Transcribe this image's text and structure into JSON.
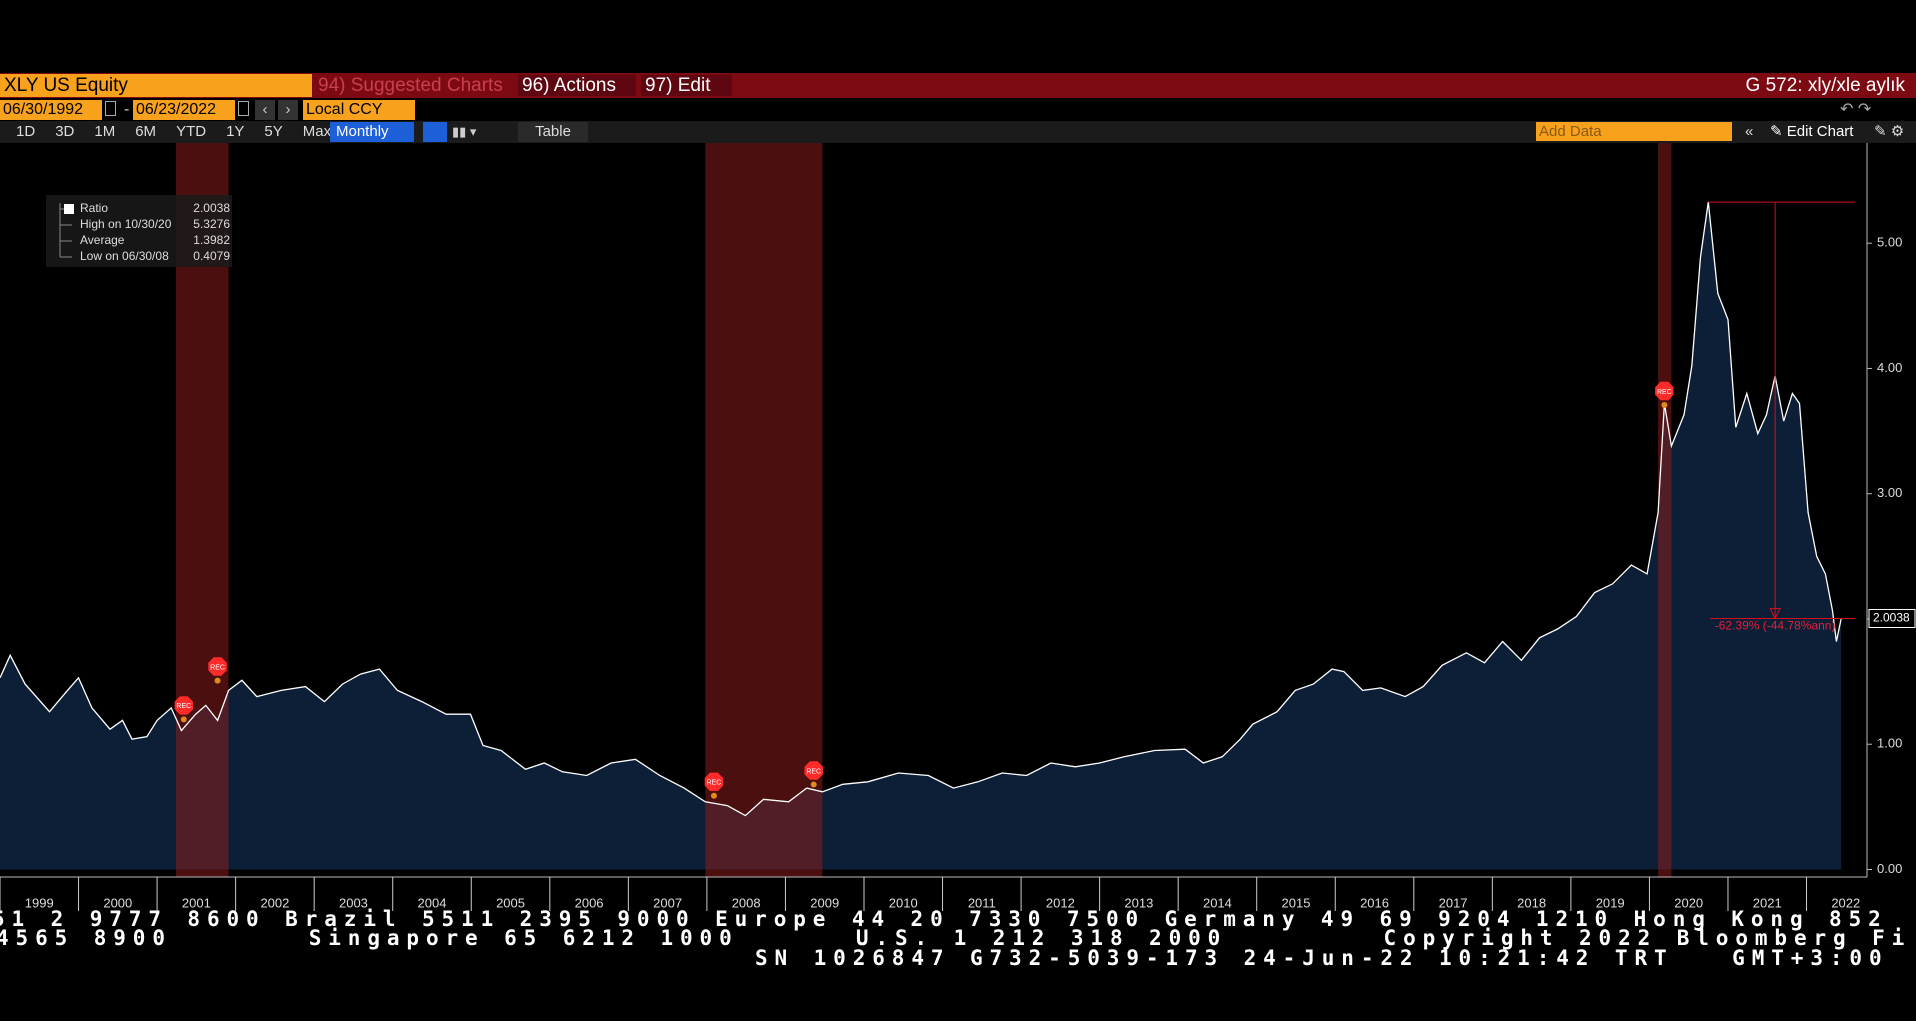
{
  "toolbar": {
    "security": "XLY US Equity",
    "suggested": "94) Suggested Charts",
    "actions": "96) Actions",
    "edit": "97) Edit",
    "chart_title": "G 572: xly/xle aylık",
    "start_date": "06/30/1992",
    "date_sep": "-",
    "end_date": "06/23/2022",
    "currency": "Local CCY",
    "periods": [
      "1D",
      "3D",
      "1M",
      "6M",
      "YTD",
      "1Y",
      "5Y",
      "Max"
    ],
    "frequency": "Monthly",
    "table": "Table",
    "add_data": "Add Data",
    "edit_chart": "Edit Chart"
  },
  "chart_data": {
    "type": "area",
    "color": "#ffffff",
    "area_color": "#0d1f37",
    "x": [
      1999.0,
      1999.13,
      1999.32,
      1999.63,
      1999.86,
      2000.0,
      2000.17,
      2000.4,
      2000.56,
      2000.68,
      2000.87,
      2001.0,
      2001.18,
      2001.31,
      2001.49,
      2001.62,
      2001.77,
      2001.91,
      2002.08,
      2002.27,
      2002.58,
      2002.89,
      2003.13,
      2003.36,
      2003.59,
      2003.83,
      2004.06,
      2004.37,
      2004.68,
      2004.99,
      2005.15,
      2005.38,
      2005.69,
      2005.93,
      2006.16,
      2006.47,
      2006.78,
      2007.09,
      2007.4,
      2007.71,
      2007.98,
      2008.26,
      2008.49,
      2008.72,
      2009.04,
      2009.27,
      2009.47,
      2009.73,
      2010.05,
      2010.44,
      2010.82,
      2011.14,
      2011.45,
      2011.76,
      2012.07,
      2012.38,
      2012.69,
      2013.0,
      2013.31,
      2013.7,
      2014.09,
      2014.32,
      2014.56,
      2014.79,
      2014.95,
      2015.26,
      2015.49,
      2015.72,
      2015.96,
      2016.11,
      2016.35,
      2016.58,
      2016.89,
      2017.12,
      2017.36,
      2017.67,
      2017.9,
      2018.13,
      2018.37,
      2018.6,
      2018.83,
      2019.07,
      2019.3,
      2019.53,
      2019.77,
      2019.97,
      2020.11,
      2020.19,
      2020.28,
      2020.44,
      2020.54,
      2020.65,
      2020.75,
      2020.87,
      2021.0,
      2021.1,
      2021.24,
      2021.38,
      2021.49,
      2021.6,
      2021.71,
      2021.82,
      2021.91,
      2022.02,
      2022.13,
      2022.24,
      2022.33,
      2022.38,
      2022.44
    ],
    "values": [
      1.53,
      1.71,
      1.48,
      1.26,
      1.43,
      1.53,
      1.29,
      1.12,
      1.19,
      1.04,
      1.06,
      1.19,
      1.29,
      1.11,
      1.24,
      1.31,
      1.19,
      1.43,
      1.51,
      1.38,
      1.43,
      1.46,
      1.34,
      1.48,
      1.56,
      1.6,
      1.43,
      1.34,
      1.24,
      1.24,
      0.99,
      0.95,
      0.8,
      0.85,
      0.78,
      0.75,
      0.85,
      0.88,
      0.75,
      0.65,
      0.54,
      0.51,
      0.43,
      0.56,
      0.54,
      0.65,
      0.62,
      0.68,
      0.7,
      0.77,
      0.75,
      0.65,
      0.7,
      0.77,
      0.75,
      0.85,
      0.82,
      0.85,
      0.9,
      0.95,
      0.96,
      0.85,
      0.9,
      1.04,
      1.16,
      1.26,
      1.43,
      1.48,
      1.6,
      1.58,
      1.43,
      1.45,
      1.38,
      1.46,
      1.63,
      1.73,
      1.65,
      1.82,
      1.67,
      1.85,
      1.92,
      2.02,
      2.21,
      2.28,
      2.43,
      2.36,
      2.85,
      3.72,
      3.38,
      3.63,
      4.02,
      4.89,
      5.33,
      4.6,
      4.39,
      3.53,
      3.8,
      3.48,
      3.63,
      3.94,
      3.58,
      3.8,
      3.72,
      2.85,
      2.5,
      2.36,
      2.07,
      1.82,
      2.0
    ],
    "xlim": [
      1999.0,
      2022.77
    ],
    "ylim": [
      -0.06,
      5.8
    ],
    "xticks": [
      1999,
      2000,
      2001,
      2002,
      2003,
      2004,
      2005,
      2006,
      2007,
      2008,
      2009,
      2010,
      2011,
      2012,
      2013,
      2014,
      2015,
      2016,
      2017,
      2018,
      2019,
      2020,
      2021,
      2022
    ],
    "yticks": [
      {
        "value": 0,
        "label": "0.00"
      },
      {
        "value": 1,
        "label": "1.00"
      },
      {
        "value": 2,
        "label": "2.00"
      },
      {
        "value": 3,
        "label": "3.00"
      },
      {
        "value": 4,
        "label": "4.00"
      },
      {
        "value": 5,
        "label": "5.00"
      }
    ],
    "recessions": [
      [
        2001.24,
        2001.91
      ],
      [
        2007.98,
        2009.47
      ],
      [
        2020.11,
        2020.28
      ]
    ],
    "recession_color": "#8a1c1c",
    "markers": [
      {
        "x": 2001.34,
        "value": 1.31,
        "label": "REC"
      },
      {
        "x": 2001.77,
        "value": 1.62,
        "label": "REC"
      },
      {
        "x": 2008.09,
        "value": 0.7,
        "label": "REC"
      },
      {
        "x": 2009.36,
        "value": 0.79,
        "label": "REC"
      },
      {
        "x": 2020.19,
        "value": 3.82,
        "label": "REC"
      }
    ],
    "legend": [
      {
        "label": "Ratio",
        "value": 2.0038
      },
      {
        "label": "High on 10/30/20",
        "value": 5.3276
      },
      {
        "label": "Average",
        "value": 1.3982
      },
      {
        "label": "Low on 06/30/08",
        "value": 0.4079
      }
    ],
    "last_value": 2.0038,
    "drawdown": {
      "x": [
        2020.75,
        2022.62
      ],
      "arrow_x": 2021.6,
      "from": 5.3276,
      "to": 2.0038,
      "label": "-62.39% (-44.78%ann)"
    }
  },
  "footer": {
    "lines": [
      "51 2 9777 8600 Brazil 5511 2395 9000 Europe 44 20 7330 7500 Germany 49 69 9204 1210 Hong Kong 852",
      "4565 8900       Singapore 65 6212 1000      U.S. 1 212 318 2000        Copyright 2022 Bloomberg Fi",
      "SN 1026847 G732-5039-173 24-Jun-22 10:21:42 TRT   GMT+3:00"
    ]
  }
}
